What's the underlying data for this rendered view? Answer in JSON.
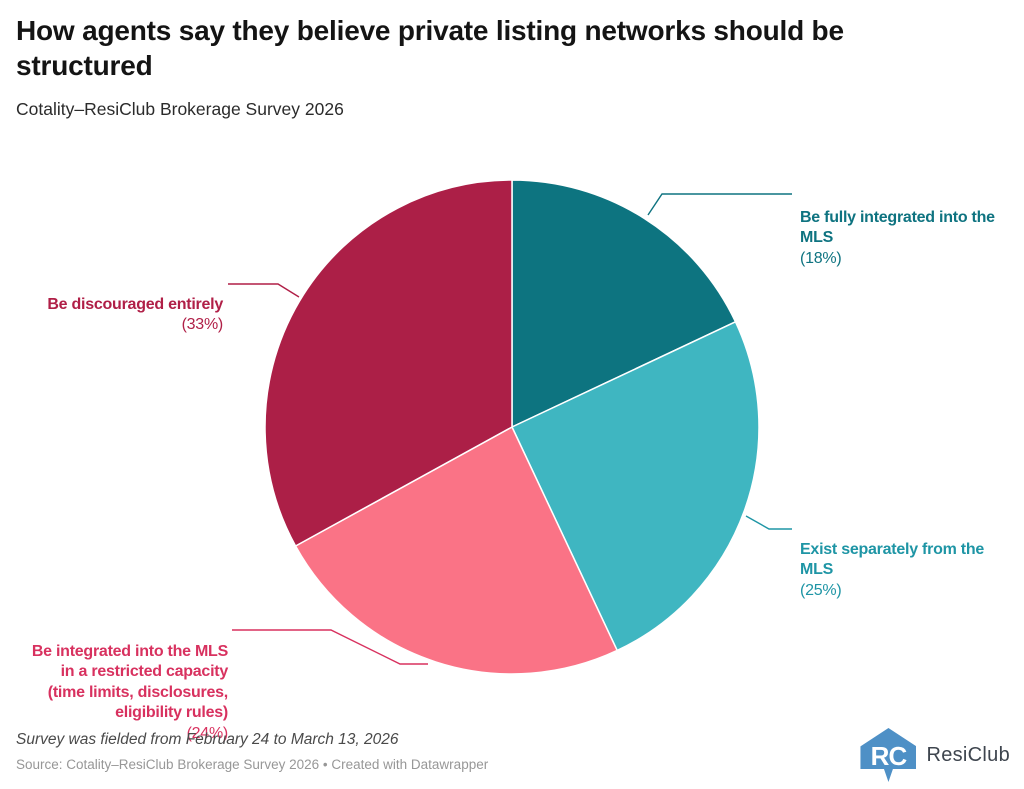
{
  "header": {
    "title": "How agents say they believe private listing networks should be\nstructured",
    "subtitle": "Cotality–ResiClub Brokerage Survey 2026"
  },
  "chart_data": {
    "type": "pie",
    "title": "How agents say they believe private listing networks should be structured",
    "subtitle": "Cotality–ResiClub Brokerage Survey 2026",
    "start_angle_deg": 0,
    "direction": "clockwise",
    "legend_position": "callout-labels",
    "slices": [
      {
        "label": "Be fully integrated into the\nMLS",
        "clean_label": "Be fully integrated into the MLS",
        "value": 18,
        "pct_text": "(18%)",
        "color": "#0d7480",
        "label_color": "#0e7380"
      },
      {
        "label": "Exist separately from the\nMLS",
        "clean_label": "Exist separately from the MLS",
        "value": 25,
        "pct_text": "(25%)",
        "color": "#3fb6c1",
        "label_color": "#1e95a5"
      },
      {
        "label": "Be integrated into the MLS\nin a restricted capacity\n(time limits, disclosures,\neligibility rules)",
        "clean_label": "Be integrated into the MLS in a restricted capacity (time limits, disclosures, eligibility rules)",
        "value": 24,
        "pct_text": "(24%)",
        "color": "#fa7386",
        "label_color": "#d8315f"
      },
      {
        "label": "Be discouraged entirely\n",
        "clean_label": "Be discouraged entirely",
        "value": 33,
        "pct_text": "(33%)",
        "color": "#ac1f47",
        "label_color": "#b01f47"
      }
    ]
  },
  "footer": {
    "note": "Survey was fielded from February 24 to March 13, 2026",
    "source": "Source: Cotality–ResiClub Brokerage Survey 2026 • Created with Datawrapper",
    "logo_text": "ResiClub",
    "logo_monogram": "RC",
    "logo_color": "#4e90c6"
  }
}
